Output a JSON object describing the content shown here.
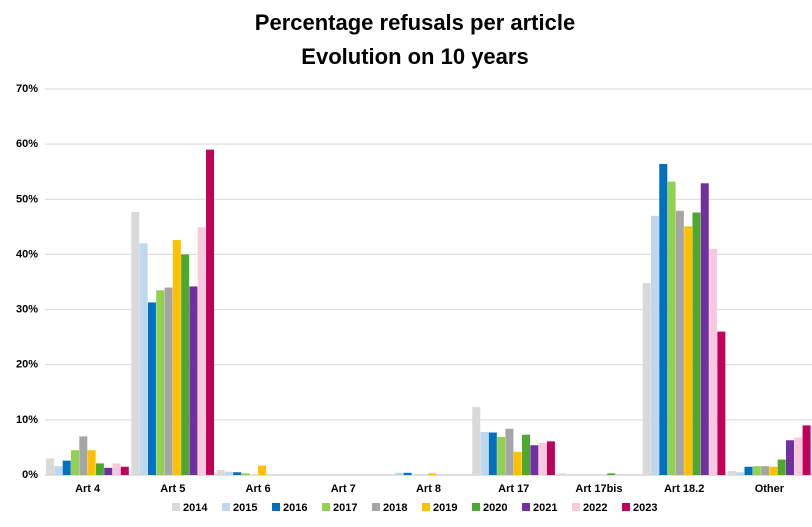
{
  "chart_data": {
    "type": "bar",
    "title": [
      "Percentage refusals per article",
      "Evolution on 10 years"
    ],
    "xlabel": "",
    "ylabel": "",
    "ylim": [
      0,
      70
    ],
    "yticks": [
      "0%",
      "10%",
      "20%",
      "30%",
      "40%",
      "50%",
      "60%",
      "70%"
    ],
    "grid": true,
    "legend_position": "bottom",
    "categories": [
      "Art 4",
      "Art 5",
      "Art 6",
      "Art 7",
      "Art 8",
      "Art 17",
      "Art 17bis",
      "Art 18.2",
      "Other"
    ],
    "series": [
      {
        "name": "2014",
        "color": "#d9d9d9",
        "values": [
          3.0,
          47.7,
          0.9,
          0,
          0,
          12.3,
          0.3,
          34.8,
          0.7
        ]
      },
      {
        "name": "2015",
        "color": "#bdd7ee",
        "values": [
          1.6,
          42.0,
          0.6,
          0,
          0.4,
          7.8,
          0,
          47.0,
          0.5
        ]
      },
      {
        "name": "2016",
        "color": "#0070c0",
        "values": [
          2.6,
          31.3,
          0.5,
          0,
          0.4,
          7.7,
          0,
          56.4,
          1.5
        ]
      },
      {
        "name": "2017",
        "color": "#92d050",
        "values": [
          4.5,
          33.5,
          0.3,
          0,
          0,
          6.9,
          0,
          53.2,
          1.6
        ]
      },
      {
        "name": "2018",
        "color": "#a5a5a5",
        "values": [
          7.0,
          34.0,
          0,
          0,
          0,
          8.4,
          0,
          47.9,
          1.6
        ]
      },
      {
        "name": "2019",
        "color": "#ffc000",
        "values": [
          4.5,
          42.6,
          1.7,
          0,
          0.3,
          4.2,
          0,
          45.1,
          1.5
        ]
      },
      {
        "name": "2020",
        "color": "#4ea72e",
        "values": [
          2.1,
          40.0,
          0,
          0,
          0,
          7.3,
          0.3,
          47.6,
          2.8
        ]
      },
      {
        "name": "2021",
        "color": "#7030a0",
        "values": [
          1.3,
          34.2,
          0,
          0,
          0,
          5.4,
          0,
          52.9,
          6.3
        ]
      },
      {
        "name": "2022",
        "color": "#f8c8dc",
        "values": [
          2.1,
          44.9,
          0,
          0,
          0,
          5.8,
          0,
          41.0,
          6.8
        ]
      },
      {
        "name": "2023",
        "color": "#c0005a",
        "values": [
          1.5,
          59.0,
          0,
          0,
          0,
          6.1,
          0,
          26.0,
          9.0
        ]
      }
    ]
  }
}
